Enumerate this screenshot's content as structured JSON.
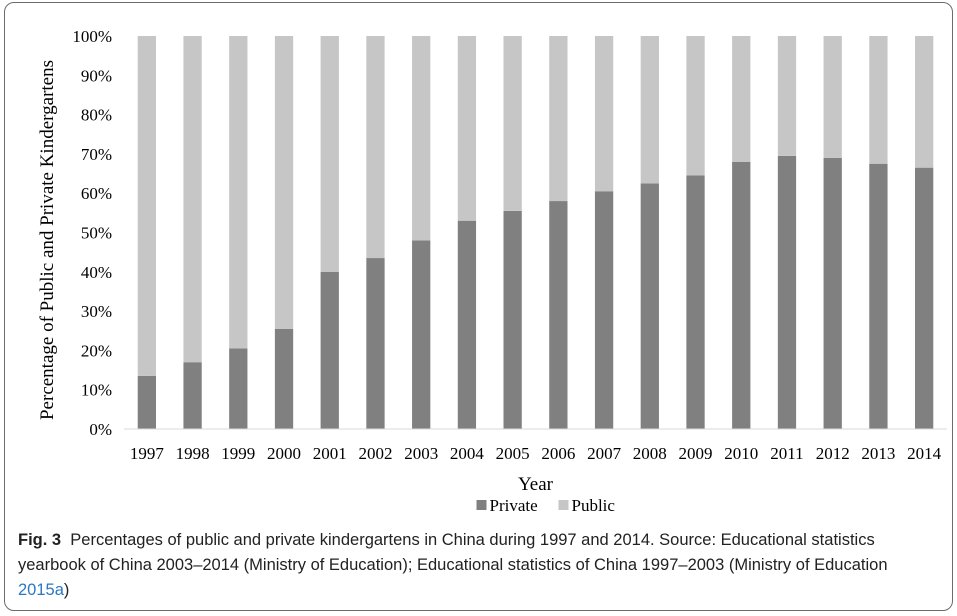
{
  "chart_data": {
    "type": "bar",
    "stacked": true,
    "percent_stacked": true,
    "categories": [
      "1997",
      "1998",
      "1999",
      "2000",
      "2001",
      "2002",
      "2003",
      "2004",
      "2005",
      "2006",
      "2007",
      "2008",
      "2009",
      "2010",
      "2011",
      "2012",
      "2013",
      "2014"
    ],
    "series": [
      {
        "name": "Private",
        "color": "#808080",
        "values": [
          13.5,
          17,
          20.5,
          25.5,
          40,
          43.5,
          48,
          53,
          55.5,
          58,
          60.5,
          62.5,
          64.5,
          68,
          69.5,
          69,
          67.5,
          66.5
        ]
      },
      {
        "name": "Public",
        "color": "#c6c6c6",
        "values": [
          86.5,
          83,
          79.5,
          74.5,
          60,
          56.5,
          52,
          47,
          44.5,
          42,
          39.5,
          37.5,
          35.5,
          32,
          30.5,
          31,
          32.5,
          33.5
        ]
      }
    ],
    "yticks": [
      "0%",
      "10%",
      "20%",
      "30%",
      "40%",
      "50%",
      "60%",
      "70%",
      "80%",
      "90%",
      "100%"
    ],
    "ylim": [
      0,
      100
    ],
    "xlabel": "Year",
    "ylabel": "Percentage of Public and Private Kindergartens",
    "legend_position": "bottom",
    "grid": false
  },
  "caption": {
    "label": "Fig. 3",
    "text": "Percentages of public and private kindergartens in China during 1997 and 2014. Source: Educational statistics yearbook of China 2003–2014 (Ministry of Education); Educational statistics of China 1997–2003 (Ministry of Education ",
    "link": "2015a",
    "tail": ")"
  }
}
